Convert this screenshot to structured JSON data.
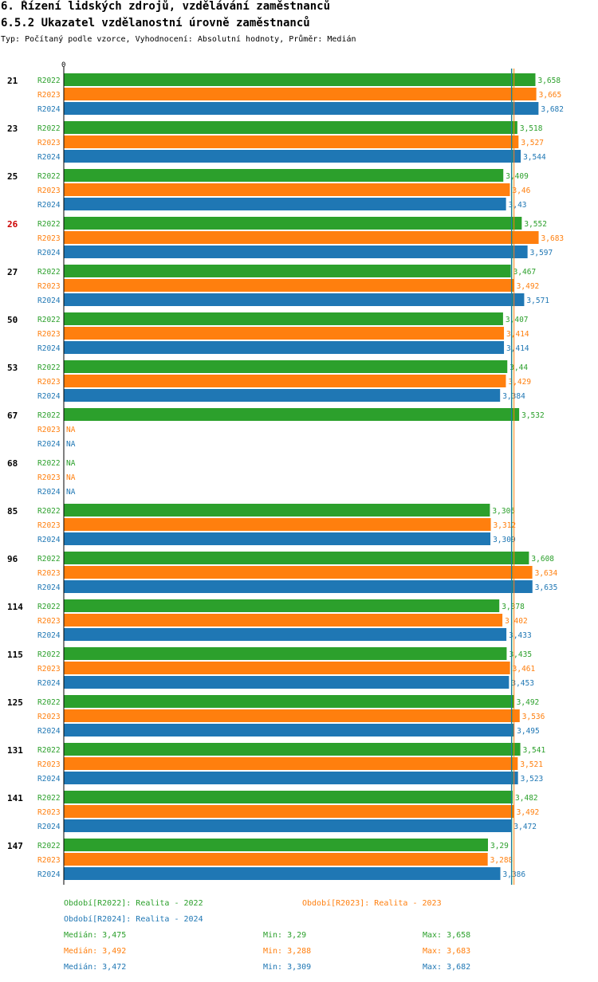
{
  "header": {
    "title": "6. Řízení lidských zdrojů, vzdělávání zaměstnanců",
    "subtitle": "6.5.2 Ukazatel vzdělanostní úrovně zaměstnanců",
    "type_line": "Typ: Počítaný podle vzorce, Vyhodnocení: Absolutní hodnoty, Průměr: Medián"
  },
  "colors": {
    "R2022": "#2ca02c",
    "R2023": "#ff7f0e",
    "R2024": "#1f77b4",
    "highlight": "#cc0000"
  },
  "chart_data": {
    "type": "bar",
    "orientation": "horizontal",
    "x_tick_label": "0",
    "xlim": [
      0,
      3.75
    ],
    "na_label": "NA",
    "series_names": [
      "R2022",
      "R2023",
      "R2024"
    ],
    "groups": [
      {
        "label": "21",
        "highlight": false,
        "values": [
          3.658,
          3.665,
          3.682
        ],
        "labels": [
          "3,658",
          "3,665",
          "3,682"
        ]
      },
      {
        "label": "23",
        "highlight": false,
        "values": [
          3.518,
          3.527,
          3.544
        ],
        "labels": [
          "3,518",
          "3,527",
          "3,544"
        ]
      },
      {
        "label": "25",
        "highlight": false,
        "values": [
          3.409,
          3.46,
          3.43
        ],
        "labels": [
          "3,409",
          "3,46",
          "3,43"
        ]
      },
      {
        "label": "26",
        "highlight": true,
        "values": [
          3.552,
          3.683,
          3.597
        ],
        "labels": [
          "3,552",
          "3,683",
          "3,597"
        ]
      },
      {
        "label": "27",
        "highlight": false,
        "values": [
          3.467,
          3.492,
          3.571
        ],
        "labels": [
          "3,467",
          "3,492",
          "3,571"
        ]
      },
      {
        "label": "50",
        "highlight": false,
        "values": [
          3.407,
          3.414,
          3.414
        ],
        "labels": [
          "3,407",
          "3,414",
          "3,414"
        ]
      },
      {
        "label": "53",
        "highlight": false,
        "values": [
          3.44,
          3.429,
          3.384
        ],
        "labels": [
          "3,44",
          "3,429",
          "3,384"
        ]
      },
      {
        "label": "67",
        "highlight": false,
        "values": [
          3.532,
          null,
          null
        ],
        "labels": [
          "3,532",
          "NA",
          "NA"
        ]
      },
      {
        "label": "68",
        "highlight": false,
        "values": [
          null,
          null,
          null
        ],
        "labels": [
          "NA",
          "NA",
          "NA"
        ]
      },
      {
        "label": "85",
        "highlight": false,
        "values": [
          3.305,
          3.312,
          3.309
        ],
        "labels": [
          "3,305",
          "3,312",
          "3,309"
        ]
      },
      {
        "label": "96",
        "highlight": false,
        "values": [
          3.608,
          3.634,
          3.635
        ],
        "labels": [
          "3,608",
          "3,634",
          "3,635"
        ]
      },
      {
        "label": "114",
        "highlight": false,
        "values": [
          3.378,
          3.402,
          3.433
        ],
        "labels": [
          "3,378",
          "3,402",
          "3,433"
        ]
      },
      {
        "label": "115",
        "highlight": false,
        "values": [
          3.435,
          3.461,
          3.453
        ],
        "labels": [
          "3,435",
          "3,461",
          "3,453"
        ]
      },
      {
        "label": "125",
        "highlight": false,
        "values": [
          3.492,
          3.536,
          3.495
        ],
        "labels": [
          "3,492",
          "3,536",
          "3,495"
        ]
      },
      {
        "label": "131",
        "highlight": false,
        "values": [
          3.541,
          3.521,
          3.523
        ],
        "labels": [
          "3,541",
          "3,521",
          "3,523"
        ]
      },
      {
        "label": "141",
        "highlight": false,
        "values": [
          3.482,
          3.492,
          3.472
        ],
        "labels": [
          "3,482",
          "3,492",
          "3,472"
        ]
      },
      {
        "label": "147",
        "highlight": false,
        "values": [
          3.29,
          3.288,
          3.386
        ],
        "labels": [
          "3,29",
          "3,288",
          "3,386"
        ]
      }
    ],
    "median_lines": [
      3.475,
      3.492,
      3.472
    ]
  },
  "legend": {
    "period_r2022": "Období[R2022]: Realita - 2022",
    "period_r2023": "Období[R2023]: Realita - 2023",
    "period_r2024": "Období[R2024]: Realita - 2024",
    "stats": [
      {
        "median": "Medián: 3,475",
        "min": "Min: 3,29",
        "max": "Max: 3,658"
      },
      {
        "median": "Medián: 3,492",
        "min": "Min: 3,288",
        "max": "Max: 3,683"
      },
      {
        "median": "Medián: 3,472",
        "min": "Min: 3,309",
        "max": "Max: 3,682"
      }
    ]
  }
}
